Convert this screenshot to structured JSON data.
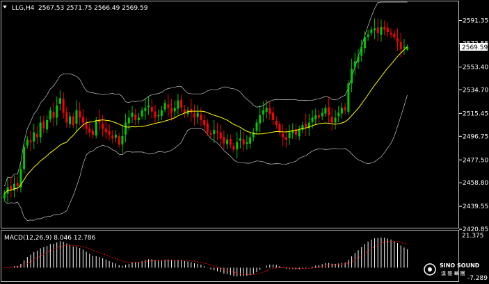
{
  "main_panel": {
    "symbol_line": {
      "symbol": "LLG,H4",
      "ohlc": "2567.53 2571.75 2566.49 2569.59"
    },
    "price_axis": [
      "2591.35",
      "2572.55",
      "2553.40",
      "2534.70",
      "2515.45",
      "2496.75",
      "2477.50",
      "2458.80",
      "2439.55",
      "2420.85"
    ],
    "current_price": "2569.59",
    "colors": {
      "bull": "#00c800",
      "bear": "#ff0000",
      "ma": "#ffff00",
      "bands": "#c8c8c8",
      "current_price_bg": "#ffffff",
      "axis": "#ffffff"
    }
  },
  "macd_panel": {
    "label": "MACD(12,26,9) 8.046 12.786",
    "axis_top": "21.375",
    "axis_bottom": "-7.289",
    "colors": {
      "histogram": "#ffffff",
      "signal": "#ff0000"
    }
  },
  "watermark": {
    "brand": "SINO SOUND",
    "subtitle": "漢 聲 華 團"
  },
  "chart_data": [
    {
      "type": "candlestick",
      "title": "LLG,H4",
      "ylim": [
        2420.85,
        2591.35
      ],
      "yticks": [
        2591.35,
        2572.55,
        2553.4,
        2534.7,
        2515.45,
        2496.75,
        2477.5,
        2458.8,
        2439.55,
        2420.85
      ],
      "last_ohlc": {
        "open": 2567.53,
        "high": 2571.75,
        "low": 2566.49,
        "close": 2569.59
      },
      "close": [
        2450,
        2455,
        2453,
        2458,
        2456,
        2470,
        2488,
        2494,
        2492,
        2500,
        2496,
        2508,
        2503,
        2510,
        2518,
        2512,
        2522,
        2528,
        2516,
        2508,
        2513,
        2506,
        2518,
        2512,
        2508,
        2503,
        2500,
        2498,
        2510,
        2508,
        2503,
        2500,
        2498,
        2495,
        2498,
        2490,
        2497,
        2508,
        2512,
        2516,
        2510,
        2512,
        2518,
        2520,
        2522,
        2517,
        2512,
        2514,
        2518,
        2524,
        2520,
        2516,
        2520,
        2526,
        2520,
        2515,
        2518,
        2516,
        2512,
        2516,
        2510,
        2506,
        2500,
        2498,
        2502,
        2500,
        2495,
        2491,
        2494,
        2490,
        2486,
        2492,
        2495,
        2490,
        2492,
        2496,
        2500,
        2508,
        2514,
        2518,
        2520,
        2515,
        2510,
        2506,
        2500,
        2496,
        2494,
        2500,
        2502,
        2498,
        2502,
        2506,
        2504,
        2508,
        2512,
        2514,
        2512,
        2516,
        2520,
        2514,
        2508,
        2512,
        2516,
        2520,
        2518,
        2540,
        2552,
        2558,
        2562,
        2570,
        2578,
        2580,
        2584,
        2585,
        2581,
        2586,
        2584,
        2582,
        2580,
        2578,
        2574,
        2568,
        2570,
        2569.59
      ],
      "ma_period": 20,
      "bands_stdev": 2
    },
    {
      "type": "bar",
      "title": "MACD(12,26,9)",
      "ylim": [
        -7.289,
        21.375
      ],
      "macd_last": 8.046,
      "signal_last": 12.786,
      "fast": 12,
      "slow": 26,
      "signal": 9
    }
  ]
}
